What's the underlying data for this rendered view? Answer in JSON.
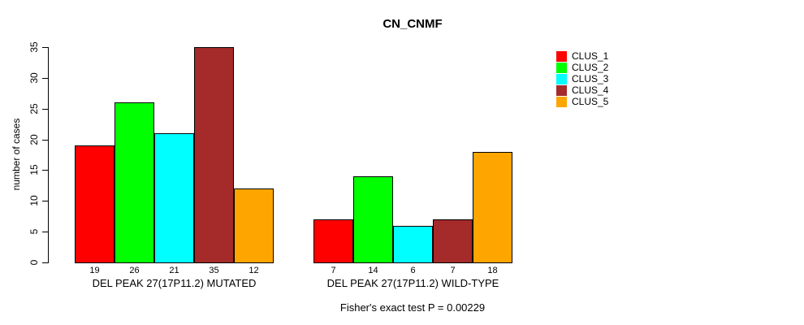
{
  "title": "CN_CNMF",
  "footer": "Fisher's exact test P = 0.00229",
  "chart_data": {
    "type": "bar",
    "title": "CN_CNMF",
    "xlabel": "",
    "ylabel": "number of cases",
    "ylim": [
      0,
      35
    ],
    "yticks": [
      0,
      5,
      10,
      15,
      20,
      25,
      30,
      35
    ],
    "grid": false,
    "legend_position": "right",
    "bar_border_color": "#000000",
    "background_color": "#ffffff",
    "groups": [
      {
        "label": "DEL PEAK 27(17P11.2) MUTATED",
        "values": [
          19,
          26,
          21,
          35,
          12
        ]
      },
      {
        "label": "DEL PEAK 27(17P11.2) WILD-TYPE",
        "values": [
          7,
          14,
          6,
          7,
          18
        ]
      }
    ],
    "series": [
      {
        "name": "CLUS_1",
        "color": "#FF0000",
        "values": [
          19,
          7
        ]
      },
      {
        "name": "CLUS_2",
        "color": "#00FF00",
        "values": [
          26,
          14
        ]
      },
      {
        "name": "CLUS_3",
        "color": "#00FFFF",
        "values": [
          21,
          6
        ]
      },
      {
        "name": "CLUS_4",
        "color": "#A52A2A",
        "values": [
          35,
          7
        ]
      },
      {
        "name": "CLUS_5",
        "color": "#FFA500",
        "values": [
          12,
          18
        ]
      }
    ],
    "legend": [
      {
        "label": "CLUS_1",
        "color": "#FF0000"
      },
      {
        "label": "CLUS_2",
        "color": "#00FF00"
      },
      {
        "label": "CLUS_3",
        "color": "#00FFFF"
      },
      {
        "label": "CLUS_4",
        "color": "#A52A2A"
      },
      {
        "label": "CLUS_5",
        "color": "#FFA500"
      }
    ],
    "annotation": "Fisher's exact test P = 0.00229"
  }
}
